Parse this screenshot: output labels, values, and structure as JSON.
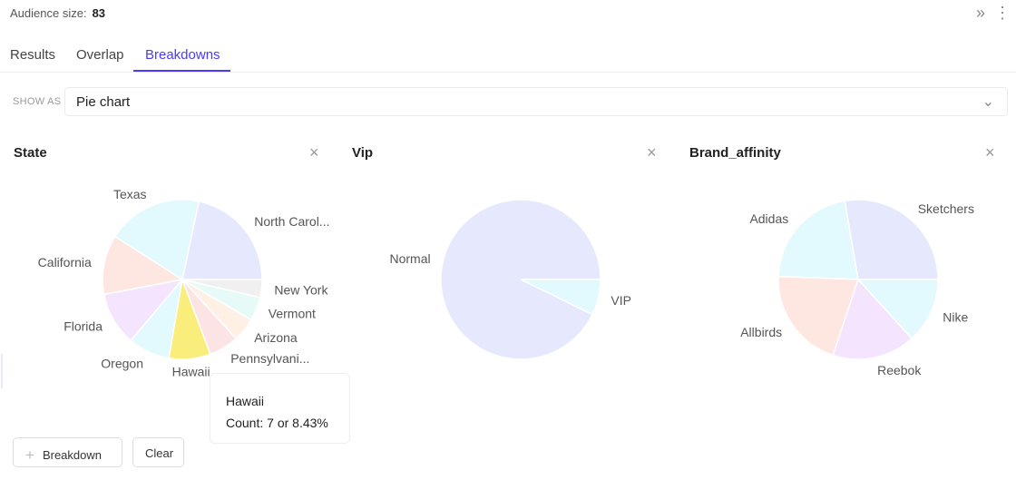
{
  "header": {
    "audience_label": "Audience size:",
    "audience_value": "83",
    "icons": [
      "double-chevron-right-icon",
      "more-vertical-icon"
    ]
  },
  "tabs": [
    {
      "label": "Results"
    },
    {
      "label": "Overlap"
    },
    {
      "label": "Breakdowns",
      "active": true
    }
  ],
  "show_as": {
    "label": "SHOW AS",
    "value": "Pie chart"
  },
  "tooltip": {
    "title": "Hawaii",
    "text": "Count: 7 or 8.43%"
  },
  "buttons": {
    "breakdown": "Breakdown",
    "clear": "Clear"
  },
  "chart_data": [
    {
      "type": "pie",
      "title": "State",
      "total": 83,
      "categories": [
        "North Carol...",
        "Texas",
        "California",
        "Florida",
        "Oregon",
        "Hawaii",
        "Pennsylvani...",
        "Arizona",
        "Vermont",
        "New York"
      ],
      "values": [
        18,
        16,
        10,
        9,
        7,
        7,
        5,
        4,
        4,
        3
      ],
      "colors": [
        "#e6e9fd",
        "#e2f9fd",
        "#fee6e1",
        "#f5e4fd",
        "#e2f9fd",
        "#f9ee7c",
        "#fde4e4",
        "#fef0e4",
        "#e6fbf7",
        "#f0f0f0"
      ],
      "highlighted": "Hawaii"
    },
    {
      "type": "pie",
      "title": "Vip",
      "total": 83,
      "categories": [
        "Normal",
        "VIP"
      ],
      "values": [
        77,
        6
      ],
      "colors": [
        "#e6e9fd",
        "#e2f9fd"
      ]
    },
    {
      "type": "pie",
      "title": "Brand_affinity",
      "total": 83,
      "categories": [
        "Sketchers",
        "Adidas",
        "Allbirds",
        "Reebok",
        "Nike"
      ],
      "values": [
        23,
        18,
        17,
        14,
        11
      ],
      "colors": [
        "#e6e9fd",
        "#e2f9fd",
        "#fee6e1",
        "#f5e4fd",
        "#e2f9fd"
      ]
    }
  ]
}
